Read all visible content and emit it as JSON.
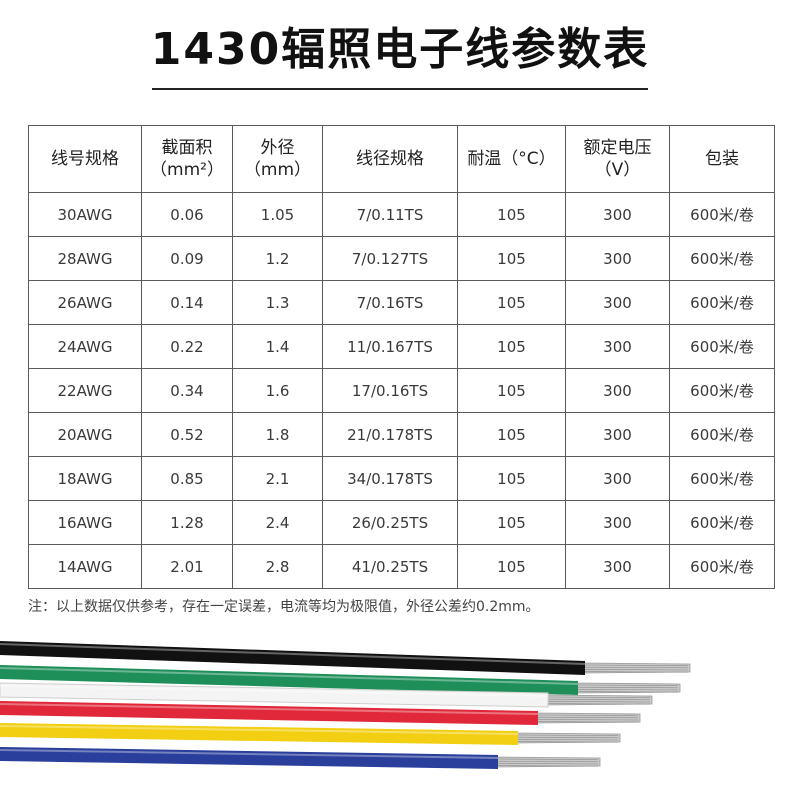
{
  "title": "1430辐照电子线参数表",
  "table": {
    "headers": [
      {
        "line1": "线号规格",
        "line2": ""
      },
      {
        "line1": "截面积",
        "line2": "（mm²）"
      },
      {
        "line1": "外径",
        "line2": "（mm）"
      },
      {
        "line1": "线径规格",
        "line2": ""
      },
      {
        "line1": "耐温（°C）",
        "line2": ""
      },
      {
        "line1": "额定电压",
        "line2": "（V）"
      },
      {
        "line1": "包装",
        "line2": ""
      }
    ],
    "rows": [
      [
        "30AWG",
        "0.06",
        "1.05",
        "7/0.11TS",
        "105",
        "300",
        "600米/卷"
      ],
      [
        "28AWG",
        "0.09",
        "1.2",
        "7/0.127TS",
        "105",
        "300",
        "600米/卷"
      ],
      [
        "26AWG",
        "0.14",
        "1.3",
        "7/0.16TS",
        "105",
        "300",
        "600米/卷"
      ],
      [
        "24AWG",
        "0.22",
        "1.4",
        "11/0.167TS",
        "105",
        "300",
        "600米/卷"
      ],
      [
        "22AWG",
        "0.34",
        "1.6",
        "17/0.16TS",
        "105",
        "300",
        "600米/卷"
      ],
      [
        "20AWG",
        "0.52",
        "1.8",
        "21/0.178TS",
        "105",
        "300",
        "600米/卷"
      ],
      [
        "18AWG",
        "0.85",
        "2.1",
        "34/0.178TS",
        "105",
        "300",
        "600米/卷"
      ],
      [
        "16AWG",
        "1.28",
        "2.4",
        "26/0.25TS",
        "105",
        "300",
        "600米/卷"
      ],
      [
        "14AWG",
        "2.01",
        "2.8",
        "41/0.25TS",
        "105",
        "300",
        "600米/卷"
      ]
    ]
  },
  "note": "注：以上数据仅供参考，存在一定误差，电流等均为极限值，外径公差约0.2mm。",
  "wires": {
    "colors": [
      "#111111",
      "#1f8f5a",
      "#f4f4f4",
      "#e0283a",
      "#f2cf12",
      "#2a3f9c"
    ],
    "names": [
      "black-wire",
      "green-wire",
      "white-wire",
      "red-wire",
      "yellow-wire",
      "blue-wire"
    ],
    "conductor_color": "#c9c9c9"
  }
}
